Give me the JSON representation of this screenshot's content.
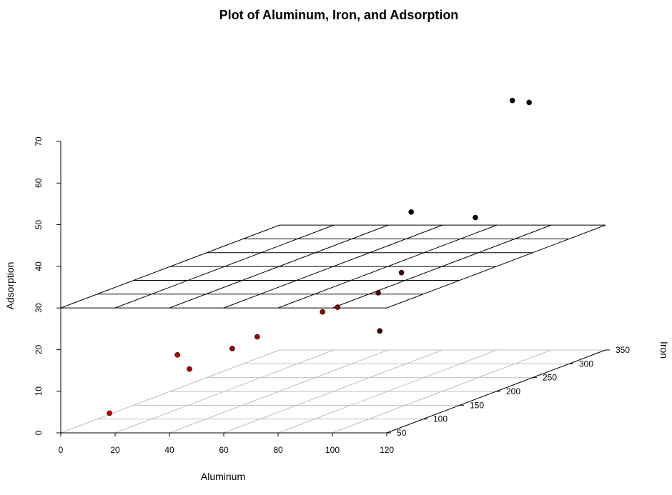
{
  "chart_data": {
    "type": "scatter",
    "title": "Plot of Aluminum, Iron, and Adsorption",
    "xlabel": "Aluminum",
    "ylabel": "Adsorption",
    "zlabel": "Iron",
    "x_ticks": [
      "0",
      "20",
      "40",
      "60",
      "80",
      "100",
      "120"
    ],
    "y_ticks": [
      "0",
      "10",
      "20",
      "30",
      "40",
      "50",
      "60",
      "70"
    ],
    "z_ticks": [
      "50",
      "100",
      "150",
      "200",
      "250",
      "300",
      "350"
    ],
    "xlim": [
      0,
      120
    ],
    "ylim": [
      0,
      70
    ],
    "zlim": [
      50,
      350
    ],
    "fitted_plane": {
      "intercept": 30,
      "slope_aluminum": 0,
      "slope_iron": 0
    },
    "plane_color": "#000000",
    "floor_grid_color": "#bfbfbf",
    "point_color_low": "#ff0000",
    "point_color_high": "#000000",
    "points": [
      {
        "aluminum": 15,
        "iron": 61,
        "adsorption": 4
      },
      {
        "aluminum": 40,
        "iron": 61,
        "adsorption": 18
      },
      {
        "aluminum": 42,
        "iron": 70,
        "adsorption": 14
      },
      {
        "aluminum": 54,
        "iron": 84,
        "adsorption": 18
      },
      {
        "aluminum": 64,
        "iron": 81,
        "adsorption": 21
      },
      {
        "aluminum": 75,
        "iron": 208,
        "adsorption": 14
      },
      {
        "aluminum": 84,
        "iron": 96,
        "adsorption": 26
      },
      {
        "aluminum": 85,
        "iron": 113,
        "adsorption": 26
      },
      {
        "aluminum": 90,
        "iron": 150,
        "adsorption": 27
      },
      {
        "aluminum": 83,
        "iron": 208,
        "adsorption": 28
      },
      {
        "aluminum": 60,
        "iron": 307,
        "adsorption": 36
      },
      {
        "aluminum": 89,
        "iron": 287,
        "adsorption": 36
      },
      {
        "aluminum": 90,
        "iron": 334,
        "adsorption": 61
      },
      {
        "aluminum": 90,
        "iron": 357,
        "adsorption": 59
      }
    ]
  }
}
